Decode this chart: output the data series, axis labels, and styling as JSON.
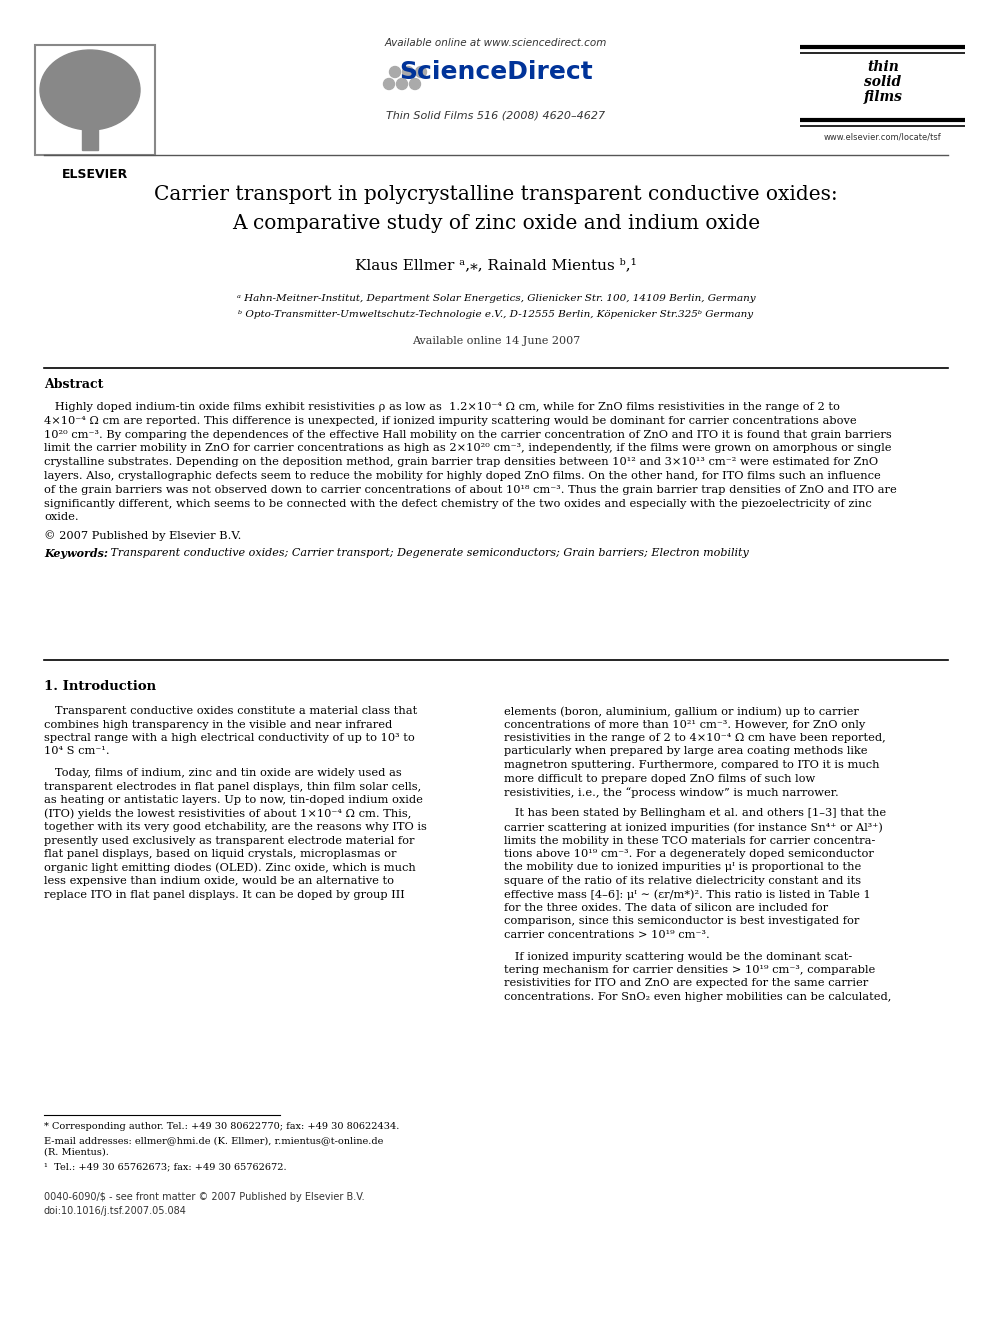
{
  "page_width": 9.92,
  "page_height": 13.23,
  "bg_color": "#ffffff",
  "header_available": "Available online at www.sciencedirect.com",
  "header_journal": "Thin Solid Films 516 (2008) 4620–4627",
  "elsevier_label": "ELSEVIER",
  "website": "www.elsevier.com/locate/tsf",
  "title_line1": "Carrier transport in polycrystalline transparent conductive oxides:",
  "title_line2": "A comparative study of zinc oxide and indium oxide",
  "author_line": "Klaus Ellmer ᵃ,⁎, Rainald Mientus ᵇ,¹",
  "affil1": "ᵃ Hahn-Meitner-Institut, Department Solar Energetics, Glienicker Str. 100, 14109 Berlin, Germany",
  "affil2": "ᵇ Opto-Transmitter-Umweltschutz-Technologie e.V., D-12555 Berlin, Köpenicker Str.325ᵇ Germany",
  "available_date": "Available online 14 June 2007",
  "abstract_title": "Abstract",
  "abstract_line1": "   Highly doped indium-tin oxide films exhibit resistivities ρ as low as  1.2×10⁻⁴ Ω cm, while for ZnO films resistivities in the range of 2 to",
  "abstract_line2": "4×10⁻⁴ Ω cm are reported. This difference is unexpected, if ionized impurity scattering would be dominant for carrier concentrations above",
  "abstract_line3": "10²⁰ cm⁻³. By comparing the dependences of the effective Hall mobility on the carrier concentration of ZnO and ITO it is found that grain barriers",
  "abstract_line4": "limit the carrier mobility in ZnO for carrier concentrations as high as 2×10²⁰ cm⁻³, independently, if the films were grown on amorphous or single",
  "abstract_line5": "crystalline substrates. Depending on the deposition method, grain barrier trap densities between 10¹² and 3×10¹³ cm⁻² were estimated for ZnO",
  "abstract_line6": "layers. Also, crystallographic defects seem to reduce the mobility for highly doped ZnO films. On the other hand, for ITO films such an influence",
  "abstract_line7": "of the grain barriers was not observed down to carrier concentrations of about 10¹⁸ cm⁻³. Thus the grain barrier trap densities of ZnO and ITO are",
  "abstract_line8": "significantly different, which seems to be connected with the defect chemistry of the two oxides and especially with the piezoelectricity of zinc",
  "abstract_line9": "oxide.",
  "copyright": "© 2007 Published by Elsevier B.V.",
  "kw_label": "Keywords:",
  "kw_text": " Transparent conductive oxides; Carrier transport; Degenerate semiconductors; Grain barriers; Electron mobility",
  "section1": "1. Introduction",
  "c1p1_l1": "   Transparent conductive oxides constitute a material class that",
  "c1p1_l2": "combines high transparency in the visible and near infrared",
  "c1p1_l3": "spectral range with a high electrical conductivity of up to 10³ to",
  "c1p1_l4": "10⁴ S cm⁻¹.",
  "c1p2_l1": "   Today, films of indium, zinc and tin oxide are widely used as",
  "c1p2_l2": "transparent electrodes in flat panel displays, thin film solar cells,",
  "c1p2_l3": "as heating or antistatic layers. Up to now, tin-doped indium oxide",
  "c1p2_l4": "(ITO) yields the lowest resistivities of about 1×10⁻⁴ Ω cm. This,",
  "c1p2_l5": "together with its very good etchability, are the reasons why ITO is",
  "c1p2_l6": "presently used exclusively as transparent electrode material for",
  "c1p2_l7": "flat panel displays, based on liquid crystals, microplasmas or",
  "c1p2_l8": "organic light emitting diodes (OLED). Zinc oxide, which is much",
  "c1p2_l9": "less expensive than indium oxide, would be an alternative to",
  "c1p2_l10": "replace ITO in flat panel displays. It can be doped by group III",
  "c2p1_l1": "elements (boron, aluminium, gallium or indium) up to carrier",
  "c2p1_l2": "concentrations of more than 10²¹ cm⁻³. However, for ZnO only",
  "c2p1_l3": "resistivities in the range of 2 to 4×10⁻⁴ Ω cm have been reported,",
  "c2p1_l4": "particularly when prepared by large area coating methods like",
  "c2p1_l5": "magnetron sputtering. Furthermore, compared to ITO it is much",
  "c2p1_l6": "more difficult to prepare doped ZnO films of such low",
  "c2p1_l7": "resistivities, i.e., the “process window” is much narrower.",
  "c2p2_l1": "   It has been stated by Bellingham et al. and others [1–3] that the",
  "c2p2_l2": "carrier scattering at ionized impurities (for instance Sn⁴⁺ or Al³⁺)",
  "c2p2_l3": "limits the mobility in these TCO materials for carrier concentra-",
  "c2p2_l4": "tions above 10¹⁹ cm⁻³. For a degenerately doped semiconductor",
  "c2p2_l5": "the mobility due to ionized impurities μᴵ is proportional to the",
  "c2p2_l6": "square of the ratio of its relative dielectricity constant and its",
  "c2p2_l7": "effective mass [4–6]: μᴵ ∼ (εr/m*)². This ratio is listed in Table 1",
  "c2p2_l8": "for the three oxides. The data of silicon are included for",
  "c2p2_l9": "comparison, since this semiconductor is best investigated for",
  "c2p2_l10": "carrier concentrations > 10¹⁹ cm⁻³.",
  "c2p3_l1": "   If ionized impurity scattering would be the dominant scat-",
  "c2p3_l2": "tering mechanism for carrier densities > 10¹⁹ cm⁻³, comparable",
  "c2p3_l3": "resistivities for ITO and ZnO are expected for the same carrier",
  "c2p3_l4": "concentrations. For SnO₂ even higher mobilities can be calculated,",
  "fn_star": "* Corresponding author. Tel.: +49 30 80622770; fax: +49 30 80622434.",
  "fn_email": "E-mail addresses: ellmer@hmi.de (K. Ellmer), r.mientus@t-online.de",
  "fn_email2": "(R. Mientus).",
  "fn_1": "¹  Tel.: +49 30 65762673; fax: +49 30 65762672.",
  "doi_line1": "0040-6090/$ - see front matter © 2007 Published by Elsevier B.V.",
  "doi_line2": "doi:10.1016/j.tsf.2007.05.084"
}
